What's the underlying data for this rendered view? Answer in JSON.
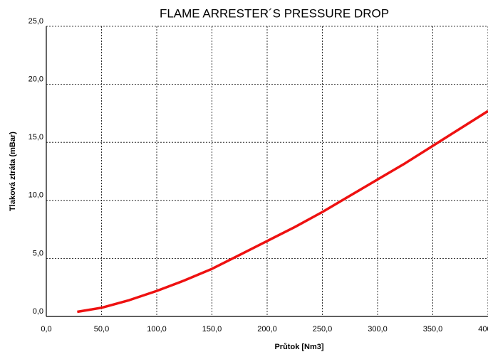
{
  "chart_data": {
    "type": "line",
    "title": "FLAME  ARRESTER´S  PRESSURE  DROP",
    "x_label": "Průtok [Nm3]",
    "y_label": "Tlaková ztráta (mBar)",
    "x": [
      28,
      50,
      75,
      100,
      125,
      150,
      175,
      200,
      225,
      250,
      275,
      300,
      325,
      350,
      375,
      400
    ],
    "series": [
      {
        "name": null,
        "color": "#ee1111",
        "values": [
          0.4,
          0.75,
          1.4,
          2.2,
          3.1,
          4.1,
          5.3,
          6.5,
          7.7,
          9.0,
          10.4,
          11.8,
          13.2,
          14.7,
          16.2,
          17.7
        ]
      }
    ],
    "xlim": [
      0,
      400
    ],
    "ylim": [
      0,
      25
    ],
    "xticks": [
      {
        "value": 0,
        "label": "0,0"
      },
      {
        "value": 50,
        "label": "50,0"
      },
      {
        "value": 100,
        "label": "100,0"
      },
      {
        "value": 150,
        "label": "150,0"
      },
      {
        "value": 200,
        "label": "200,0"
      },
      {
        "value": 250,
        "label": "250,0"
      },
      {
        "value": 300,
        "label": "300,0"
      },
      {
        "value": 350,
        "label": "350,0"
      },
      {
        "value": 400,
        "label": "400,0"
      }
    ],
    "yticks": [
      {
        "value": 0,
        "label": "0,0"
      },
      {
        "value": 5,
        "label": "5,0"
      },
      {
        "value": 10,
        "label": "10,0"
      },
      {
        "value": 15,
        "label": "15,0"
      },
      {
        "value": 20,
        "label": "20,0"
      },
      {
        "value": 25,
        "label": "25,0"
      }
    ],
    "grid": true
  }
}
